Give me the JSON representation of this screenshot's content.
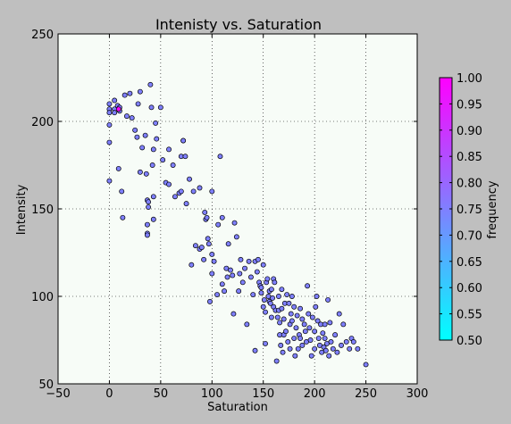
{
  "chart_data": {
    "type": "scatter",
    "title": "Intenisty vs. Saturation",
    "xlabel": "Saturation",
    "ylabel": "Intensity",
    "xlim": [
      -50,
      300
    ],
    "ylim": [
      50,
      250
    ],
    "xticks": [
      -50,
      0,
      50,
      100,
      150,
      200,
      250,
      300
    ],
    "yticks": [
      50,
      100,
      150,
      200,
      250
    ],
    "grid": true,
    "colorbar": {
      "label": "frequency",
      "range": [
        0.5,
        1.0
      ],
      "ticks": [
        "0.50",
        "0.55",
        "0.60",
        "0.65",
        "0.70",
        "0.75",
        "0.80",
        "0.85",
        "0.90",
        "0.95",
        "1.00"
      ],
      "colormap": "cool",
      "low_color": "#00ffff",
      "high_color": "#ff00ff"
    },
    "colors": {
      "plot_background": "#f7fcf7",
      "figure_background": "#bfbfbf",
      "point_color": "#7f80ff",
      "highlight_color": "#ff00ff"
    },
    "points": [
      [
        0,
        210
      ],
      [
        0,
        207
      ],
      [
        0,
        205
      ],
      [
        0,
        198
      ],
      [
        0,
        188
      ],
      [
        0,
        166
      ],
      [
        5,
        212
      ],
      [
        5,
        207
      ],
      [
        5,
        205
      ],
      [
        8,
        209
      ],
      [
        10,
        208
      ],
      [
        10,
        206
      ],
      [
        9,
        173
      ],
      [
        12,
        160
      ],
      [
        13,
        145
      ],
      [
        15,
        215
      ],
      [
        17,
        203
      ],
      [
        20,
        216
      ],
      [
        22,
        202
      ],
      [
        25,
        195
      ],
      [
        27,
        191
      ],
      [
        28,
        210
      ],
      [
        30,
        171
      ],
      [
        30,
        217
      ],
      [
        32,
        185
      ],
      [
        35,
        192
      ],
      [
        36,
        170
      ],
      [
        37,
        155
      ],
      [
        38,
        154
      ],
      [
        38,
        151
      ],
      [
        37,
        141
      ],
      [
        37,
        136
      ],
      [
        37,
        135
      ],
      [
        40,
        221
      ],
      [
        41,
        208
      ],
      [
        43,
        184
      ],
      [
        42,
        175
      ],
      [
        43,
        157
      ],
      [
        43,
        144
      ],
      [
        45,
        199
      ],
      [
        46,
        190
      ],
      [
        50,
        208
      ],
      [
        52,
        178
      ],
      [
        55,
        165
      ],
      [
        58,
        184
      ],
      [
        58,
        164
      ],
      [
        62,
        175
      ],
      [
        64,
        157
      ],
      [
        68,
        159
      ],
      [
        70,
        160
      ],
      [
        70,
        180
      ],
      [
        72,
        189
      ],
      [
        72,
        189
      ],
      [
        74,
        180
      ],
      [
        75,
        153
      ],
      [
        78,
        167
      ],
      [
        80,
        118
      ],
      [
        82,
        160
      ],
      [
        84,
        129
      ],
      [
        88,
        127
      ],
      [
        88,
        162
      ],
      [
        90,
        128
      ],
      [
        92,
        121
      ],
      [
        93,
        148
      ],
      [
        94,
        144
      ],
      [
        95,
        145
      ],
      [
        96,
        133
      ],
      [
        97,
        130
      ],
      [
        98,
        97
      ],
      [
        100,
        160
      ],
      [
        100,
        124
      ],
      [
        100,
        113
      ],
      [
        102,
        120
      ],
      [
        105,
        101
      ],
      [
        106,
        141
      ],
      [
        108,
        180
      ],
      [
        110,
        145
      ],
      [
        110,
        107
      ],
      [
        112,
        103
      ],
      [
        114,
        116
      ],
      [
        115,
        111
      ],
      [
        116,
        130
      ],
      [
        118,
        115
      ],
      [
        120,
        112
      ],
      [
        121,
        90
      ],
      [
        122,
        142
      ],
      [
        124,
        134
      ],
      [
        126,
        103
      ],
      [
        127,
        113
      ],
      [
        128,
        121
      ],
      [
        130,
        108
      ],
      [
        132,
        116
      ],
      [
        134,
        84
      ],
      [
        136,
        120
      ],
      [
        138,
        111
      ],
      [
        140,
        101
      ],
      [
        142,
        69
      ],
      [
        142,
        120
      ],
      [
        144,
        114
      ],
      [
        145,
        121
      ],
      [
        146,
        108
      ],
      [
        147,
        106
      ],
      [
        148,
        105
      ],
      [
        148,
        102
      ],
      [
        150,
        118
      ],
      [
        150,
        94
      ],
      [
        151,
        98
      ],
      [
        152,
        91
      ],
      [
        152,
        73
      ],
      [
        153,
        108
      ],
      [
        154,
        110
      ],
      [
        155,
        100
      ],
      [
        156,
        97
      ],
      [
        156,
        103
      ],
      [
        157,
        96
      ],
      [
        158,
        104
      ],
      [
        158,
        88
      ],
      [
        159,
        99
      ],
      [
        160,
        94
      ],
      [
        160,
        110
      ],
      [
        161,
        108
      ],
      [
        162,
        92
      ],
      [
        163,
        63
      ],
      [
        164,
        88
      ],
      [
        165,
        100
      ],
      [
        165,
        92
      ],
      [
        166,
        85
      ],
      [
        166,
        78
      ],
      [
        167,
        72
      ],
      [
        168,
        93
      ],
      [
        168,
        104
      ],
      [
        169,
        68
      ],
      [
        170,
        87
      ],
      [
        170,
        78
      ],
      [
        171,
        96
      ],
      [
        172,
        80
      ],
      [
        173,
        101
      ],
      [
        174,
        74
      ],
      [
        175,
        96
      ],
      [
        176,
        84
      ],
      [
        176,
        70
      ],
      [
        177,
        90
      ],
      [
        178,
        100
      ],
      [
        178,
        86
      ],
      [
        180,
        94
      ],
      [
        180,
        76
      ],
      [
        181,
        66
      ],
      [
        182,
        82
      ],
      [
        183,
        89
      ],
      [
        184,
        70
      ],
      [
        185,
        78
      ],
      [
        186,
        93
      ],
      [
        186,
        76
      ],
      [
        188,
        87
      ],
      [
        188,
        72
      ],
      [
        190,
        84
      ],
      [
        191,
        80
      ],
      [
        192,
        74
      ],
      [
        193,
        106
      ],
      [
        194,
        90
      ],
      [
        195,
        82
      ],
      [
        196,
        75
      ],
      [
        197,
        66
      ],
      [
        198,
        88
      ],
      [
        200,
        80
      ],
      [
        200,
        70
      ],
      [
        201,
        94
      ],
      [
        202,
        100
      ],
      [
        203,
        86
      ],
      [
        204,
        76
      ],
      [
        205,
        72
      ],
      [
        206,
        84
      ],
      [
        207,
        68
      ],
      [
        208,
        79
      ],
      [
        209,
        71
      ],
      [
        210,
        84
      ],
      [
        210,
        76
      ],
      [
        211,
        69
      ],
      [
        212,
        73
      ],
      [
        213,
        98
      ],
      [
        214,
        66
      ],
      [
        215,
        85
      ],
      [
        216,
        74
      ],
      [
        218,
        70
      ],
      [
        220,
        78
      ],
      [
        222,
        68
      ],
      [
        224,
        90
      ],
      [
        226,
        72
      ],
      [
        228,
        84
      ],
      [
        231,
        74
      ],
      [
        234,
        70
      ],
      [
        236,
        76
      ],
      [
        238,
        74
      ],
      [
        242,
        70
      ],
      [
        250,
        61
      ]
    ],
    "highlight_points": [
      [
        9,
        207
      ]
    ]
  }
}
